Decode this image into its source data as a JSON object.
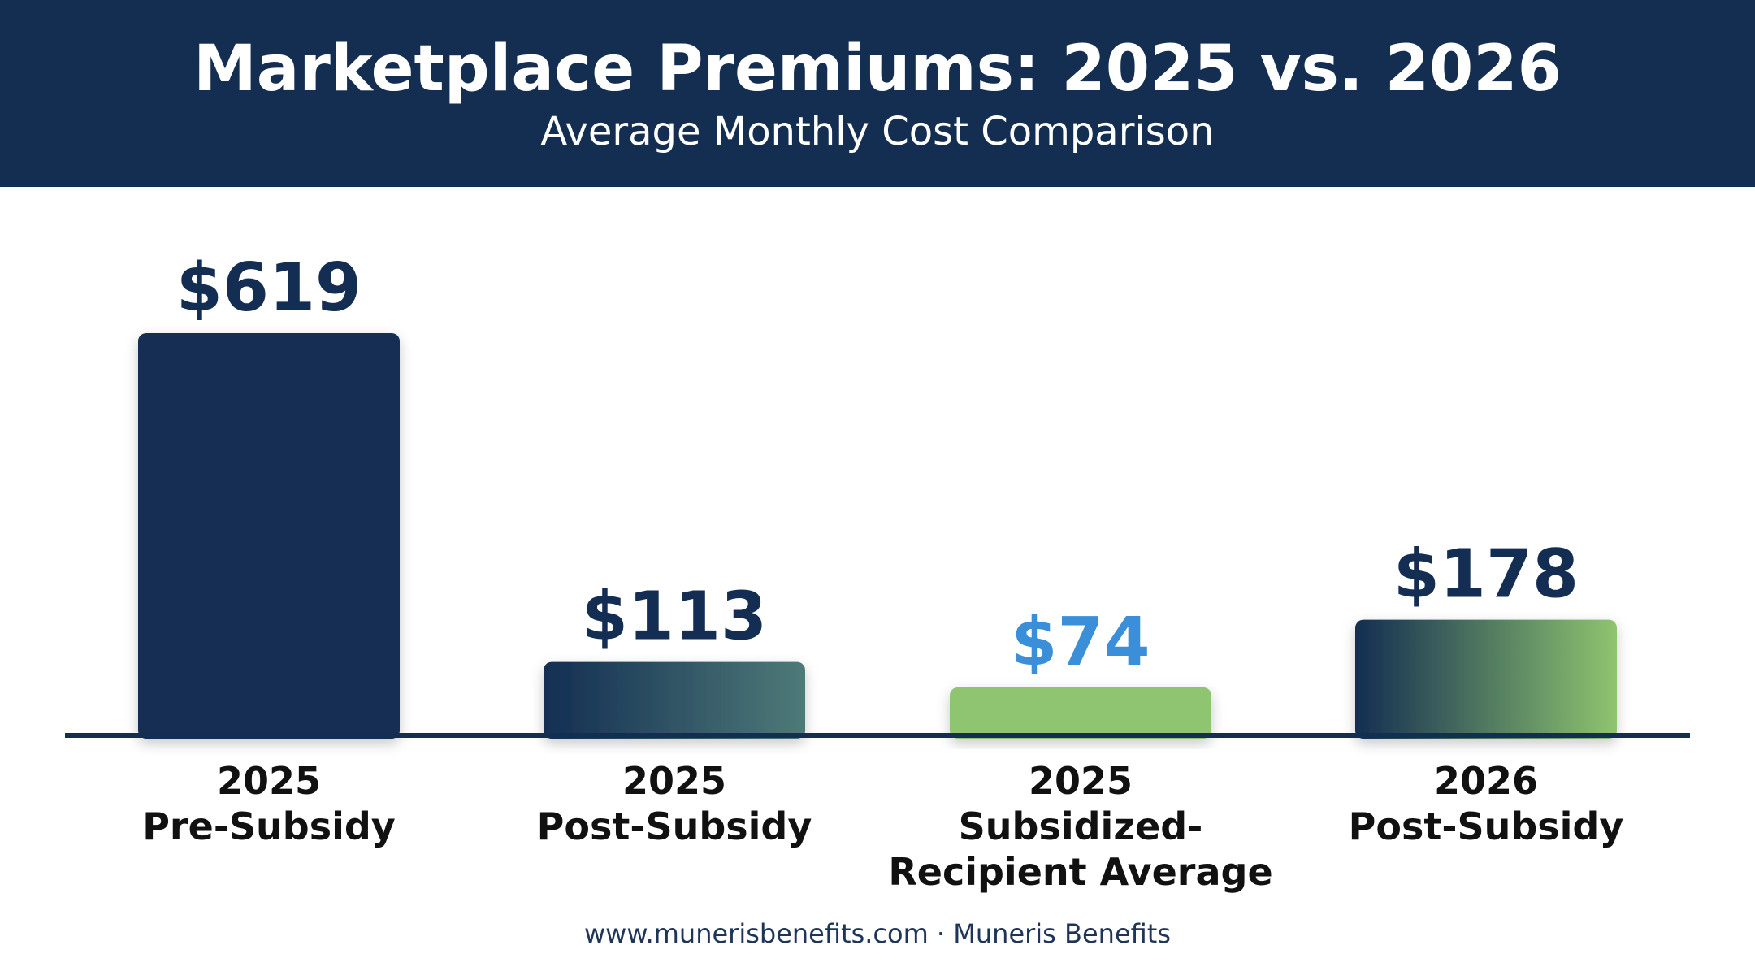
{
  "header": {
    "title": "Marketplace Premiums: 2025 vs. 2026",
    "subtitle": "Average Monthly Cost Comparison"
  },
  "footer": {
    "text": "www.munerisbenefits.com · Muneris Benefits"
  },
  "colors": {
    "header_bg": "#142e52",
    "navy": "#132e52",
    "teal": "#4e7a78",
    "green": "#8fc46f",
    "accent_blue": "#3b8fd9",
    "baseline": "#142e52"
  },
  "chart_data": {
    "type": "bar",
    "title": "Marketplace Premiums: 2025 vs. 2026",
    "subtitle": "Average Monthly Cost Comparison",
    "categories": [
      [
        "2025",
        "Pre-Subsidy"
      ],
      [
        "2025",
        "Post-Subsidy"
      ],
      [
        "2025",
        "Subsidized-",
        "Recipient Average"
      ],
      [
        "2026",
        "Post-Subsidy"
      ]
    ],
    "values": [
      619,
      113,
      74,
      178
    ],
    "value_labels": [
      "$619",
      "$113",
      "$74",
      "$178"
    ],
    "bar_fills": [
      "solid-navy",
      "gradient-navy-teal",
      "solid-green",
      "gradient-navy-green"
    ],
    "label_colors": [
      "#132e52",
      "#132e52",
      "#3b8fd9",
      "#132e52"
    ],
    "xlabel": "",
    "ylabel": "",
    "ylim": [
      0,
      619
    ],
    "grid": false,
    "legend": "none"
  }
}
